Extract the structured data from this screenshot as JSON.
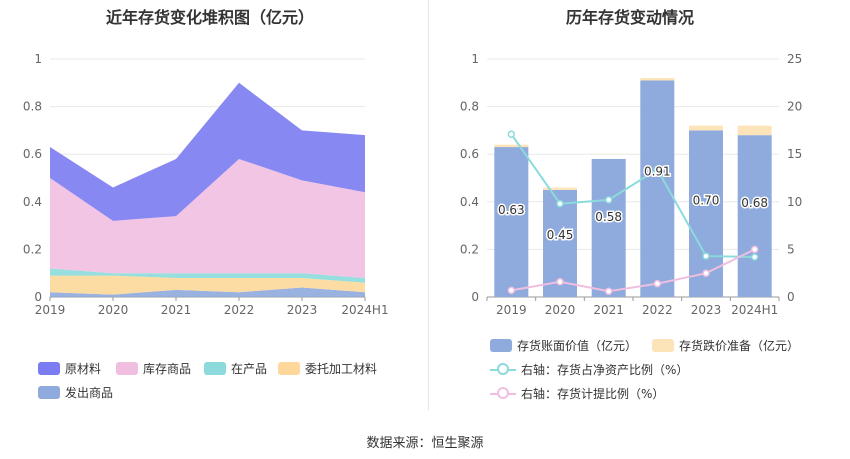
{
  "left_chart": {
    "title": "近年存货变化堆积图（亿元）",
    "legend": [
      {
        "name": "原材料",
        "color": "#7b7bf2"
      },
      {
        "name": "库存商品",
        "color": "#f0bfe0"
      },
      {
        "name": "在产品",
        "color": "#8cdadc"
      },
      {
        "name": "委托加工材料",
        "color": "#fdd89a"
      },
      {
        "name": "发出商品",
        "color": "#8faadc"
      }
    ]
  },
  "right_chart": {
    "title": "历年存货变动情况",
    "legend": [
      {
        "name": "存货账面价值（亿元）",
        "color": "#8faadc",
        "kind": "box"
      },
      {
        "name": "存货跌价准备（亿元）",
        "color": "#fde3b8",
        "kind": "box"
      },
      {
        "name": "右轴：存货占净资产比例（%）",
        "color": "#8cdadc",
        "kind": "line"
      },
      {
        "name": "右轴：存货计提比例（%）",
        "color": "#f0bfe0",
        "kind": "line"
      }
    ]
  },
  "source": "数据来源：恒生聚源",
  "chart_data": [
    {
      "type": "area",
      "stacked": true,
      "x": [
        "2019",
        "2020",
        "2021",
        "2022",
        "2023",
        "2024H1"
      ],
      "ylim": [
        0,
        1
      ],
      "yticks": [
        "0",
        "0.2",
        "0.4",
        "0.6",
        "0.8",
        "1"
      ],
      "grid": true,
      "legend_position": "bottom",
      "series": [
        {
          "name": "发出商品",
          "color": "#8faadc",
          "values": [
            0.02,
            0.01,
            0.03,
            0.02,
            0.04,
            0.02
          ]
        },
        {
          "name": "委托加工材料",
          "color": "#fdd89a",
          "values": [
            0.07,
            0.08,
            0.05,
            0.06,
            0.04,
            0.04
          ]
        },
        {
          "name": "在产品",
          "color": "#8cdadc",
          "values": [
            0.03,
            0.01,
            0.02,
            0.02,
            0.02,
            0.02
          ]
        },
        {
          "name": "库存商品",
          "color": "#f0bfe0",
          "values": [
            0.38,
            0.22,
            0.24,
            0.48,
            0.39,
            0.36
          ]
        },
        {
          "name": "原材料",
          "color": "#7b7bf2",
          "values": [
            0.13,
            0.14,
            0.24,
            0.32,
            0.21,
            0.24
          ]
        }
      ]
    },
    {
      "type": "bar",
      "stacked": true,
      "categories": [
        "2019",
        "2020",
        "2021",
        "2022",
        "2023",
        "2024H1"
      ],
      "ylim": [
        0,
        1
      ],
      "yticks": [
        "0",
        "0.2",
        "0.4",
        "0.6",
        "0.8",
        "1"
      ],
      "y2lim": [
        0,
        25
      ],
      "y2ticks": [
        "0",
        "5",
        "10",
        "15",
        "20",
        "25"
      ],
      "grid": true,
      "legend_position": "bottom",
      "series": [
        {
          "name": "存货账面价值（亿元）",
          "color": "#8faadc",
          "values": [
            0.63,
            0.45,
            0.58,
            0.91,
            0.7,
            0.68
          ],
          "labels": [
            "0.63",
            "0.45",
            "0.58",
            "0.91",
            "0.70",
            "0.68"
          ]
        },
        {
          "name": "存货跌价准备（亿元）",
          "color": "#fde3b8",
          "values": [
            0.01,
            0.01,
            0.0,
            0.01,
            0.02,
            0.04
          ]
        }
      ],
      "lines": [
        {
          "name": "右轴：存货占净资产比例（%）",
          "color": "#8cdadc",
          "axis": "right",
          "values": [
            17.1,
            9.8,
            10.2,
            13.4,
            4.3,
            4.2
          ]
        },
        {
          "name": "右轴：存货计提比例（%）",
          "color": "#f0bfe0",
          "axis": "right",
          "values": [
            0.7,
            1.6,
            0.6,
            1.4,
            2.5,
            5.0
          ]
        }
      ]
    }
  ]
}
